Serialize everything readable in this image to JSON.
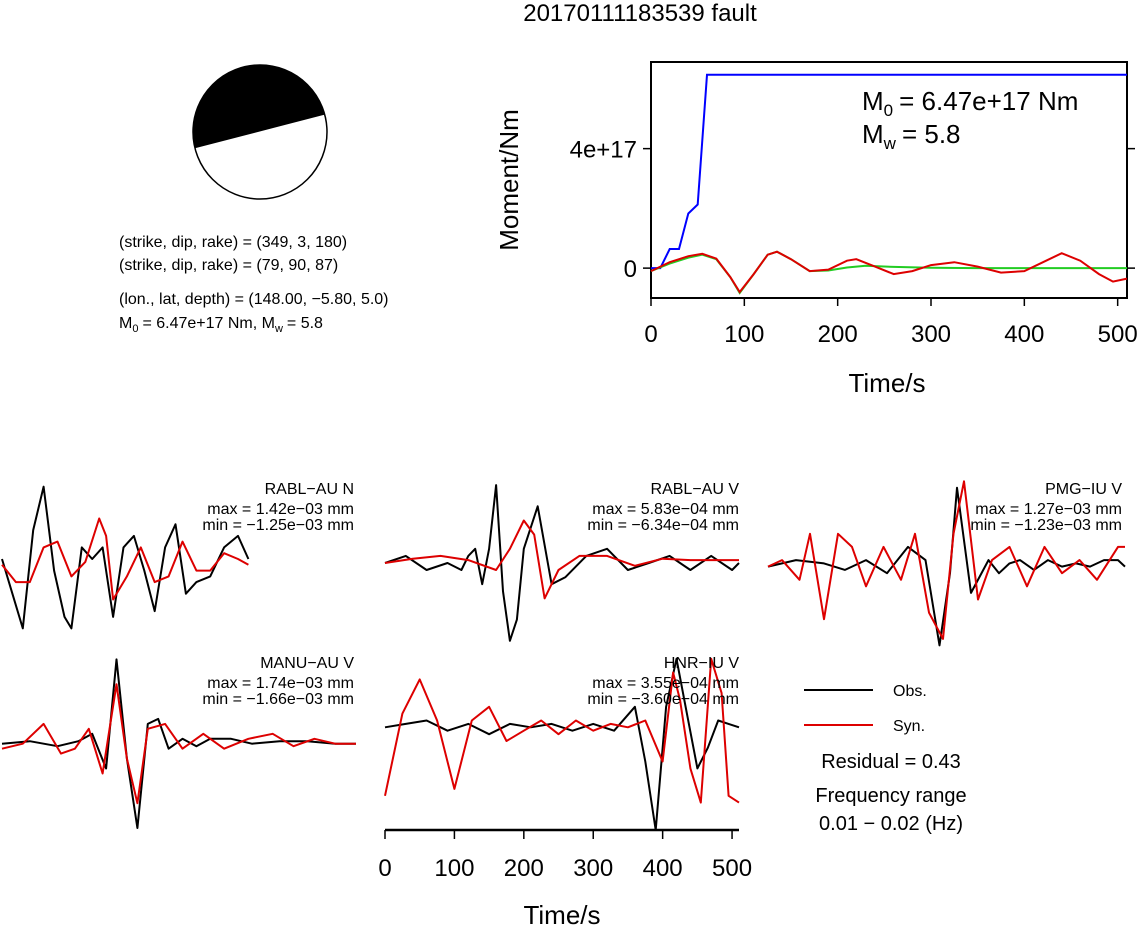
{
  "title": "20170111183539 fault",
  "mechanism": {
    "line1": "(strike, dip, rake) = (349, 3, 180)",
    "line2": "(strike, dip, rake) = (79, 90, 87)",
    "line3": "(lon., lat, depth) = (148.00, −5.80, 5.0)",
    "m0_text": "= 6.47e+17 Nm, M",
    "m0_sub": "0",
    "mw_sub": "w",
    "mw_text": "= 5.8",
    "m_letter": "M",
    "colors": {
      "fill": "#000000",
      "empty": "#ffffff"
    }
  },
  "moment_panel": {
    "ylabel": "Moment/Nm",
    "xlabel": "Time/s",
    "m0_letter": "M",
    "m0_sub": "0",
    "m0_value": "= 6.47e+17 Nm",
    "mw_letter": "M",
    "mw_sub": "w",
    "mw_value": "= 5.8",
    "yticks": [
      {
        "value": 0,
        "label": "0"
      },
      {
        "value": 4e+17,
        "label": "4e+17"
      }
    ],
    "xticks": [
      0,
      100,
      200,
      300,
      400,
      500
    ]
  },
  "waveform_panel": {
    "xlabel": "Time/s",
    "xticks": [
      0,
      100,
      200,
      300,
      400,
      500
    ]
  },
  "legend": {
    "obs": "Obs.",
    "syn": "Syn.",
    "residual": "Residual = 0.43",
    "freq_title": "Frequency range",
    "freq_value": "0.01 − 0.02 (Hz)"
  },
  "chart_data": [
    {
      "type": "line",
      "title": "",
      "xlabel": "Time/s",
      "ylabel": "Moment/Nm",
      "xlim": [
        0,
        510
      ],
      "ylim": [
        -1e+17,
        6.9e+17
      ],
      "series": [
        {
          "color": "#0000ff",
          "x": [
            0,
            10,
            20,
            30,
            40,
            50,
            60,
            510
          ],
          "y": [
            0,
            0,
            6.4e+16,
            6.4e+16,
            1.83e+17,
            2.13e+17,
            6.47e+17,
            6.47e+17
          ]
        },
        {
          "color": "#22cc22",
          "x": [
            0,
            20,
            40,
            55,
            70,
            85,
            95,
            110,
            125,
            135,
            150,
            170,
            190,
            210,
            230,
            260,
            300,
            350,
            400,
            450,
            510
          ],
          "y": [
            -1e+16,
            1.5e+16,
            3.5e+16,
            4.5e+16,
            3e+16,
            -3e+16,
            -8.3e+16,
            -2e+16,
            4.5e+16,
            5.5e+16,
            3e+16,
            -1e+16,
            -8000000000000000.0,
            2000000000000000.0,
            8000000000000000.0,
            4000000000000000.0,
            1000000000000000.0,
            0,
            0,
            0,
            0
          ]
        },
        {
          "color": "#dd0000",
          "x": [
            0,
            20,
            40,
            55,
            70,
            85,
            95,
            110,
            125,
            135,
            150,
            170,
            190,
            210,
            220,
            240,
            260,
            280,
            300,
            325,
            350,
            375,
            400,
            420,
            440,
            460,
            480,
            495,
            510
          ],
          "y": [
            -1e+16,
            2e+16,
            4e+16,
            4.8e+16,
            3.2e+16,
            -3e+16,
            -8e+16,
            -2e+16,
            4.5e+16,
            5.5e+16,
            3e+16,
            -1e+16,
            -5000000000000000.0,
            2.5e+16,
            3e+16,
            5000000000000000.0,
            -2e+16,
            -1e+16,
            1e+16,
            2e+16,
            5000000000000000.0,
            -1.5e+16,
            -1e+16,
            2e+16,
            5e+16,
            2.5e+16,
            -2e+16,
            -4.5e+16,
            -3.5e+16
          ]
        }
      ]
    },
    {
      "type": "line",
      "title": "RABL−AU N",
      "max_label": "max = 1.42e−03 mm",
      "min_label": "min = −1.25e−03 mm",
      "xlim": [
        0,
        510
      ],
      "ylim": [
        -1.3,
        1.5
      ],
      "series": [
        {
          "name": "Obs.",
          "color": "#000000",
          "x": [
            0,
            15,
            30,
            45,
            60,
            75,
            90,
            100,
            115,
            130,
            145,
            160,
            175,
            190,
            205,
            220,
            235,
            250,
            265,
            280,
            300,
            320,
            340,
            355
          ],
          "y": [
            0.1,
            -0.5,
            -1.1,
            0.6,
            1.35,
            -0.1,
            -0.9,
            -1.1,
            0.3,
            0.1,
            0.3,
            -0.9,
            0.3,
            0.5,
            -0.1,
            -0.8,
            0.3,
            0.7,
            -0.5,
            -0.3,
            -0.2,
            0.3,
            0.5,
            0.1
          ]
        },
        {
          "name": "Syn.",
          "color": "#dd0000",
          "x": [
            0,
            20,
            40,
            60,
            80,
            100,
            120,
            140,
            150,
            160,
            180,
            200,
            220,
            240,
            260,
            280,
            300,
            320,
            340,
            355
          ],
          "y": [
            0,
            -0.3,
            -0.3,
            0.3,
            0.4,
            -0.2,
            0.05,
            0.8,
            0.5,
            -0.6,
            -0.2,
            0.3,
            -0.3,
            -0.2,
            0.4,
            -0.1,
            -0.1,
            0.2,
            0.1,
            0
          ]
        }
      ]
    },
    {
      "type": "line",
      "title": "RABL−AU V",
      "max_label": "max = 5.83e−04 mm",
      "min_label": "min = −6.34e−04 mm",
      "xlim": [
        0,
        510
      ],
      "ylim": [
        -0.65,
        0.6
      ],
      "series": [
        {
          "name": "Obs.",
          "color": "#000000",
          "x": [
            0,
            30,
            60,
            90,
            110,
            120,
            130,
            140,
            150,
            160,
            170,
            180,
            190,
            200,
            220,
            240,
            260,
            290,
            320,
            350,
            380,
            410,
            440,
            470,
            500,
            510
          ],
          "y": [
            0,
            0.05,
            -0.05,
            0,
            -0.05,
            0.05,
            0.1,
            -0.15,
            0.1,
            0.55,
            -0.2,
            -0.55,
            -0.4,
            0.1,
            0.4,
            -0.15,
            -0.1,
            0.05,
            0.1,
            -0.05,
            0,
            0.05,
            -0.05,
            0.05,
            -0.05,
            0
          ]
        },
        {
          "name": "Syn.",
          "color": "#dd0000",
          "x": [
            0,
            40,
            80,
            120,
            160,
            180,
            190,
            200,
            215,
            230,
            250,
            280,
            320,
            360,
            400,
            440,
            480,
            510
          ],
          "y": [
            0,
            0.03,
            0.05,
            0.02,
            -0.05,
            0.1,
            0.2,
            0.3,
            0.2,
            -0.25,
            -0.05,
            0.05,
            0.05,
            -0.02,
            0.03,
            0.02,
            0.02,
            0.02
          ]
        }
      ]
    },
    {
      "type": "line",
      "title": "PMG−IU V",
      "max_label": "max = 1.27e−03 mm",
      "min_label": "min = −1.23e−03 mm",
      "xlim": [
        0,
        510
      ],
      "ylim": [
        -1.3,
        1.35
      ],
      "series": [
        {
          "name": "Obs.",
          "color": "#000000",
          "x": [
            0,
            40,
            80,
            110,
            140,
            170,
            200,
            225,
            245,
            260,
            270,
            290,
            315,
            330,
            345,
            360,
            380,
            400,
            420,
            440,
            460,
            480,
            500,
            510
          ],
          "y": [
            0,
            0.1,
            0.05,
            -0.05,
            0.1,
            -0.1,
            0.3,
            0.1,
            -1.2,
            -0.1,
            1.2,
            -0.4,
            0.1,
            -0.1,
            0.05,
            0.1,
            -0.05,
            0.1,
            0,
            0.05,
            0,
            0.1,
            0.1,
            0
          ]
        },
        {
          "name": "Syn.",
          "color": "#dd0000",
          "x": [
            0,
            20,
            45,
            60,
            80,
            100,
            120,
            140,
            165,
            190,
            210,
            230,
            250,
            265,
            280,
            300,
            320,
            345,
            370,
            395,
            420,
            445,
            470,
            500,
            510
          ],
          "y": [
            0,
            0.1,
            -0.2,
            0.5,
            -0.8,
            0.5,
            0.3,
            -0.3,
            0.3,
            -0.2,
            0.5,
            -0.7,
            -1.1,
            0.5,
            1.3,
            -0.5,
            0.1,
            0.3,
            -0.3,
            0.3,
            -0.1,
            0.1,
            -0.2,
            0.3,
            0.3
          ]
        }
      ]
    },
    {
      "type": "line",
      "title": "MANU−AU V",
      "max_label": "max = 1.74e−03 mm",
      "min_label": "min = −1.66e−03 mm",
      "xlim": [
        0,
        510
      ],
      "ylim": [
        -1.7,
        1.85
      ],
      "series": [
        {
          "name": "Obs.",
          "color": "#000000",
          "x": [
            0,
            40,
            80,
            110,
            130,
            150,
            165,
            180,
            195,
            210,
            225,
            240,
            260,
            280,
            300,
            330,
            360,
            400,
            440,
            480,
            510
          ],
          "y": [
            0,
            0.05,
            -0.05,
            0.05,
            0.2,
            -0.5,
            1.7,
            -0.3,
            -1.7,
            0.4,
            0.5,
            -0.1,
            0.1,
            -0.05,
            0.1,
            0.1,
            0,
            0.05,
            0.05,
            0,
            0
          ]
        },
        {
          "name": "Syn.",
          "color": "#dd0000",
          "x": [
            0,
            30,
            60,
            85,
            105,
            125,
            145,
            165,
            180,
            195,
            210,
            235,
            260,
            290,
            320,
            355,
            390,
            420,
            450,
            480,
            510
          ],
          "y": [
            -0.1,
            0,
            0.4,
            -0.2,
            -0.1,
            0.3,
            -0.6,
            1.2,
            -0.3,
            -1.2,
            0.3,
            0.4,
            -0.1,
            0.2,
            -0.1,
            0.1,
            0.2,
            -0.05,
            0.1,
            0,
            0
          ]
        }
      ]
    },
    {
      "type": "line",
      "title": "HNR−IU V",
      "max_label": "max = 3.55e−04 mm",
      "min_label": "min = −3.60e−04 mm",
      "xlim": [
        0,
        510
      ],
      "ylim": [
        -1.5,
        1.1
      ],
      "series": [
        {
          "name": "Obs.",
          "color": "#000000",
          "x": [
            0,
            30,
            60,
            90,
            120,
            150,
            180,
            210,
            240,
            270,
            300,
            330,
            360,
            375,
            390,
            405,
            420,
            435,
            450,
            465,
            480,
            495,
            510
          ],
          "y": [
            0,
            0.05,
            0.1,
            -0.05,
            0.05,
            -0.1,
            0.05,
            0,
            0.05,
            -0.05,
            0.05,
            -0.05,
            0.3,
            -0.5,
            -1.5,
            0.3,
            1.0,
            0.2,
            -0.6,
            -0.3,
            0.1,
            0.05,
            0
          ]
        },
        {
          "name": "Syn.",
          "color": "#dd0000",
          "x": [
            0,
            25,
            50,
            75,
            100,
            125,
            150,
            175,
            200,
            225,
            250,
            275,
            300,
            325,
            350,
            375,
            400,
            415,
            425,
            440,
            455,
            470,
            485,
            495,
            510
          ],
          "y": [
            -1.0,
            0.2,
            0.7,
            0.1,
            -0.9,
            0.1,
            0.3,
            -0.2,
            -0.05,
            0.1,
            -0.1,
            0.1,
            -0.05,
            0.05,
            0,
            0.1,
            -0.5,
            0.8,
            0.4,
            -0.6,
            -1.1,
            1.0,
            0.5,
            -1.0,
            -1.1
          ]
        }
      ]
    }
  ]
}
